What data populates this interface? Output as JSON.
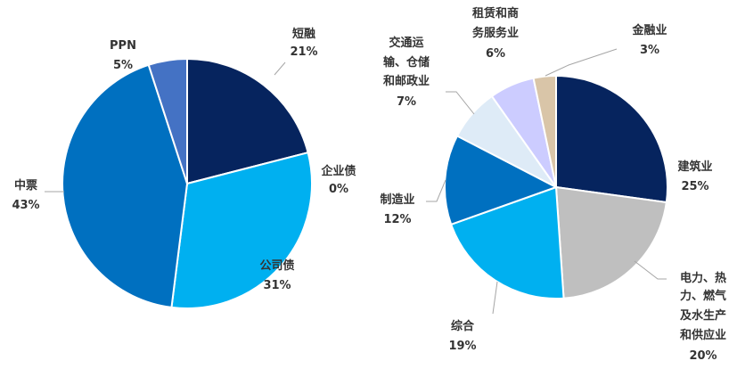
{
  "chart_data": [
    {
      "type": "pie",
      "slices": [
        {
          "label": "短融",
          "value": 21,
          "value_label": "21%",
          "color": "#06245e"
        },
        {
          "label": "企业债",
          "value": 0,
          "value_label": "0%",
          "color": "#1f4e9a"
        },
        {
          "label": "公司债",
          "value": 31,
          "value_label": "31%",
          "color": "#00b0f0"
        },
        {
          "label": "中票",
          "value": 43,
          "value_label": "43%",
          "color": "#0070c0"
        },
        {
          "label": "PPN",
          "value": 5,
          "value_label": "5%",
          "color": "#4472c4"
        }
      ]
    },
    {
      "type": "pie",
      "slices": [
        {
          "label": "建筑业",
          "value": 25,
          "value_label": "25%",
          "color": "#06245e"
        },
        {
          "label": "电力、热力、燃气及水生产和供应业",
          "value": 20,
          "value_label": "20%",
          "color": "#bfbfbf"
        },
        {
          "label": "综合",
          "value": 19,
          "value_label": "19%",
          "color": "#00b0f0"
        },
        {
          "label": "制造业",
          "value": 12,
          "value_label": "12%",
          "color": "#0070c0"
        },
        {
          "label": "交通运输、仓储和邮政业",
          "value": 7,
          "value_label": "7%",
          "color": "#deebf7"
        },
        {
          "label": "租赁和商务服务业",
          "value": 6,
          "value_label": "6%",
          "color": "#ccccff"
        },
        {
          "label": "金融业",
          "value": 3,
          "value_label": "3%",
          "color": "#d9c5a8"
        }
      ]
    }
  ]
}
